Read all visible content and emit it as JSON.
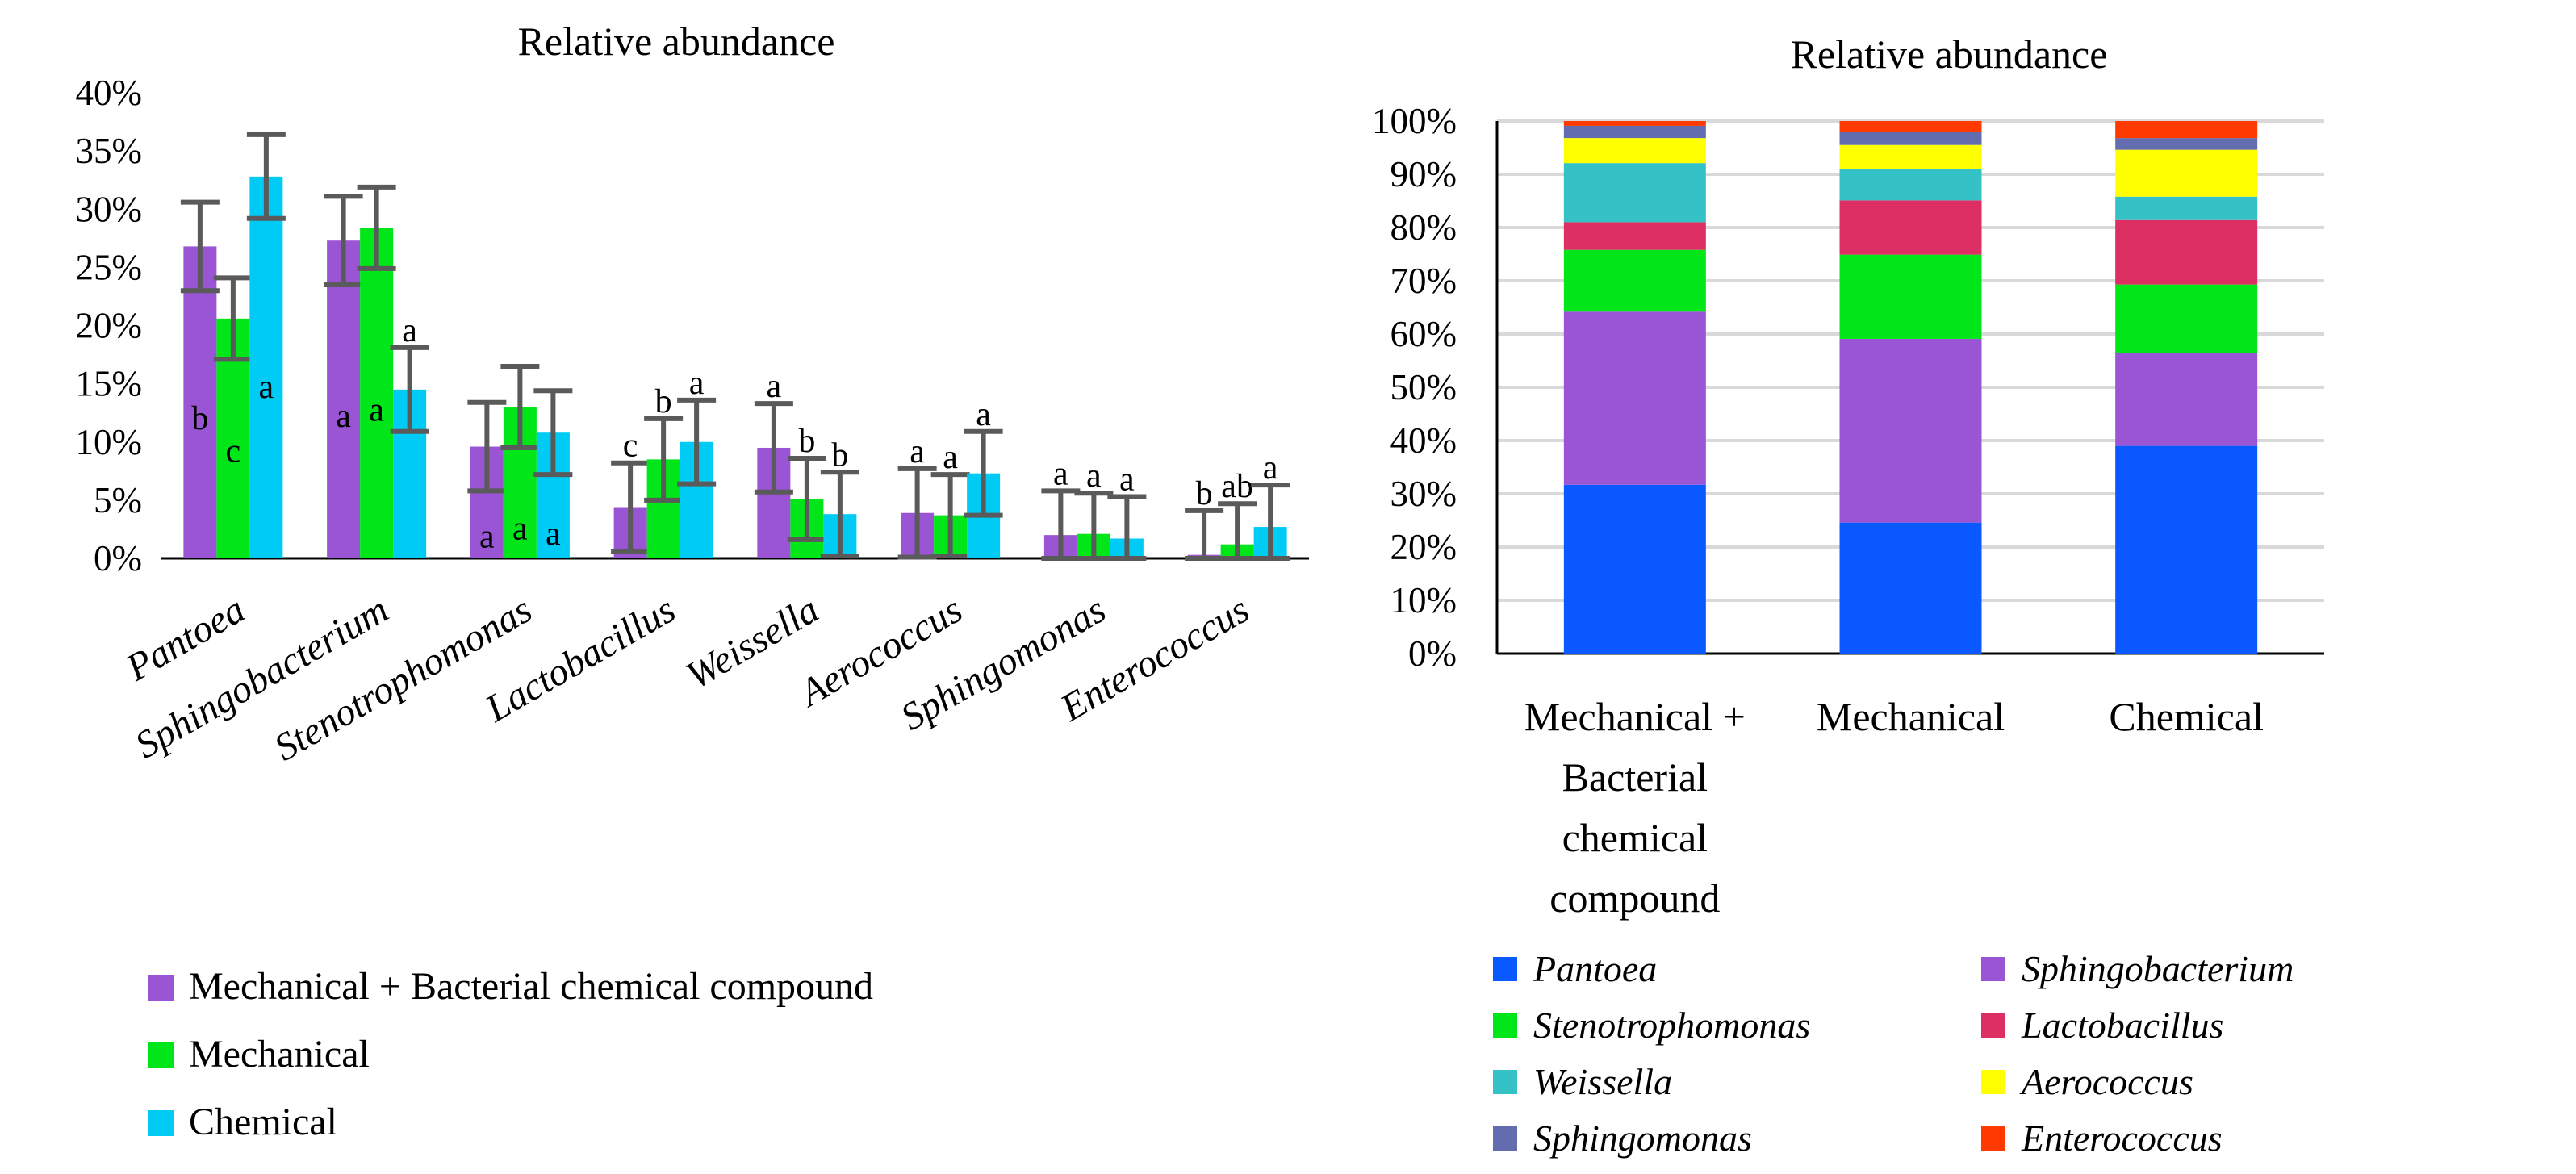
{
  "chart_data": [
    {
      "type": "bar",
      "title": "Relative abundance",
      "xlabel": "",
      "ylabel": "",
      "ylim": [
        0,
        40
      ],
      "yticks": [
        "0%",
        "5%",
        "10%",
        "15%",
        "20%",
        "25%",
        "30%",
        "35%",
        "40%"
      ],
      "categories": [
        "Pantoea",
        "Sphingobacterium",
        "Stenotrophomonas",
        "Lactobacillus",
        "Weissella",
        "Aerococcus",
        "Sphingomonas",
        "Enterococcus"
      ],
      "series": [
        {
          "name": "Mechanical + Bacterial chemical compound",
          "color": "#9955d4",
          "values": [
            26.8,
            27.3,
            9.6,
            4.4,
            9.5,
            3.9,
            2.0,
            0.3
          ],
          "errors": [
            3.8,
            3.8,
            3.8,
            3.8,
            3.8,
            3.8,
            3.8,
            3.8
          ],
          "labels": [
            "b",
            "a",
            "a",
            "c",
            "a",
            "a",
            "a",
            "b"
          ]
        },
        {
          "name": "Mechanical",
          "color": "#00e619",
          "values": [
            20.6,
            28.4,
            13.0,
            8.5,
            5.1,
            3.7,
            2.1,
            1.2
          ],
          "errors": [
            3.5,
            3.5,
            3.5,
            3.5,
            3.5,
            3.5,
            3.5,
            3.5
          ],
          "labels": [
            "c",
            "a",
            "a",
            "b",
            "b",
            "a",
            "a",
            "ab"
          ]
        },
        {
          "name": "Chemical",
          "color": "#00cbf5",
          "values": [
            32.8,
            14.5,
            10.8,
            10.0,
            3.8,
            7.3,
            1.7,
            2.7
          ],
          "errors": [
            3.6,
            3.6,
            3.6,
            3.6,
            3.6,
            3.6,
            3.6,
            3.6
          ],
          "labels": [
            "a",
            "a",
            "a",
            "a",
            "b",
            "a",
            "a",
            "a"
          ]
        }
      ],
      "legend": "bottom"
    },
    {
      "type": "bar",
      "stacked": true,
      "title": "Relative abundance",
      "ylim": [
        0,
        100
      ],
      "yticks": [
        "0%",
        "10%",
        "20%",
        "30%",
        "40%",
        "50%",
        "60%",
        "70%",
        "80%",
        "90%",
        "100%"
      ],
      "grid": true,
      "categories": [
        "Mechanical + Bacterial chemical compound",
        "Mechanical",
        "Chemical"
      ],
      "category_lines": [
        [
          "Mechanical +",
          "Bacterial",
          "chemical",
          "compound"
        ],
        [
          "Mechanical"
        ],
        [
          "Chemical"
        ]
      ],
      "series": [
        {
          "name": "Pantoea",
          "color": "#0a58ff",
          "values": [
            31.7,
            24.6,
            39.0
          ]
        },
        {
          "name": "Sphingobacterium",
          "color": "#9955d4",
          "values": [
            32.5,
            34.5,
            17.5
          ]
        },
        {
          "name": "Stenotrophomonas",
          "color": "#00e619",
          "values": [
            11.6,
            15.8,
            12.8
          ]
        },
        {
          "name": "Lactobacillus",
          "color": "#dd2f64",
          "values": [
            5.2,
            10.2,
            12.1
          ]
        },
        {
          "name": "Weissella",
          "color": "#34c2c6",
          "values": [
            11.1,
            5.9,
            4.4
          ]
        },
        {
          "name": "Aerococcus",
          "color": "#ffff00",
          "values": [
            4.7,
            4.5,
            8.8
          ]
        },
        {
          "name": "Sphingomonas",
          "color": "#646cb0",
          "values": [
            2.3,
            2.5,
            2.2
          ]
        },
        {
          "name": "Enterococcus",
          "color": "#ff3a00",
          "values": [
            0.9,
            2.0,
            3.2
          ]
        }
      ],
      "legend": "bottom"
    }
  ]
}
